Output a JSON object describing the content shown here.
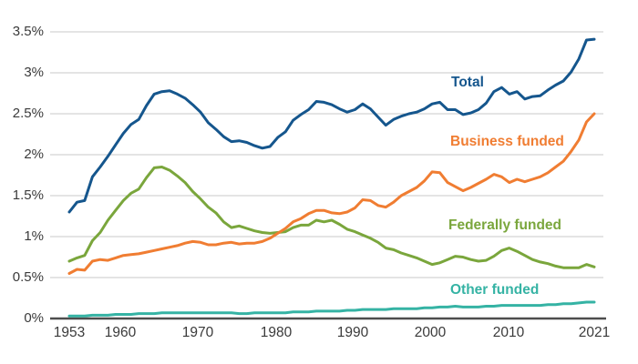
{
  "chart_data": {
    "type": "line",
    "x_range": [
      1953,
      2021
    ],
    "ylim": [
      0,
      3.5
    ],
    "y_unit": "percent",
    "grid": "horizontal",
    "legend_position": "inline-labels",
    "xticks": [
      "1953",
      "1960",
      "1970",
      "1980",
      "1990",
      "2000",
      "2010",
      "2021"
    ],
    "yticks": [
      "3.5%",
      "3%",
      "2.5%",
      "2%",
      "1.5%",
      "1%",
      "0.5%",
      "0%"
    ],
    "grid_values": [
      0.5,
      1,
      1.5,
      2,
      2.5,
      3,
      3.5
    ],
    "series": [
      {
        "name": "Total",
        "color": "#15568d",
        "values": [
          1.3,
          1.42,
          1.44,
          1.73,
          1.85,
          1.98,
          2.12,
          2.26,
          2.37,
          2.43,
          2.6,
          2.74,
          2.77,
          2.78,
          2.74,
          2.69,
          2.61,
          2.52,
          2.39,
          2.31,
          2.22,
          2.16,
          2.17,
          2.15,
          2.11,
          2.08,
          2.1,
          2.21,
          2.28,
          2.42,
          2.49,
          2.55,
          2.65,
          2.64,
          2.61,
          2.56,
          2.52,
          2.55,
          2.62,
          2.56,
          2.46,
          2.36,
          2.43,
          2.47,
          2.5,
          2.52,
          2.56,
          2.62,
          2.64,
          2.55,
          2.55,
          2.49,
          2.51,
          2.55,
          2.63,
          2.77,
          2.82,
          2.74,
          2.77,
          2.68,
          2.71,
          2.72,
          2.79,
          2.85,
          2.9,
          3.01,
          3.17,
          3.4,
          3.41
        ]
      },
      {
        "name": "Business funded",
        "color": "#f07d32",
        "values": [
          0.55,
          0.6,
          0.59,
          0.7,
          0.72,
          0.71,
          0.74,
          0.77,
          0.78,
          0.79,
          0.81,
          0.83,
          0.85,
          0.87,
          0.89,
          0.92,
          0.94,
          0.93,
          0.9,
          0.9,
          0.92,
          0.93,
          0.91,
          0.92,
          0.92,
          0.94,
          0.98,
          1.04,
          1.1,
          1.18,
          1.22,
          1.28,
          1.32,
          1.32,
          1.29,
          1.28,
          1.3,
          1.35,
          1.45,
          1.44,
          1.38,
          1.36,
          1.42,
          1.5,
          1.55,
          1.6,
          1.68,
          1.79,
          1.78,
          1.66,
          1.61,
          1.56,
          1.6,
          1.65,
          1.7,
          1.76,
          1.73,
          1.66,
          1.7,
          1.67,
          1.7,
          1.73,
          1.78,
          1.85,
          1.92,
          2.04,
          2.18,
          2.4,
          2.5
        ]
      },
      {
        "name": "Federally funded",
        "color": "#7aa63c",
        "values": [
          0.7,
          0.74,
          0.77,
          0.95,
          1.05,
          1.2,
          1.32,
          1.44,
          1.53,
          1.58,
          1.72,
          1.84,
          1.85,
          1.81,
          1.74,
          1.66,
          1.55,
          1.46,
          1.36,
          1.29,
          1.18,
          1.11,
          1.13,
          1.1,
          1.07,
          1.05,
          1.04,
          1.05,
          1.06,
          1.11,
          1.14,
          1.14,
          1.2,
          1.18,
          1.2,
          1.15,
          1.09,
          1.06,
          1.02,
          0.98,
          0.93,
          0.86,
          0.84,
          0.8,
          0.77,
          0.74,
          0.7,
          0.66,
          0.68,
          0.72,
          0.76,
          0.75,
          0.72,
          0.7,
          0.71,
          0.76,
          0.83,
          0.86,
          0.82,
          0.77,
          0.72,
          0.69,
          0.67,
          0.64,
          0.62,
          0.62,
          0.62,
          0.66,
          0.63
        ]
      },
      {
        "name": "Other funded",
        "color": "#35b3a4",
        "values": [
          0.03,
          0.03,
          0.03,
          0.04,
          0.04,
          0.04,
          0.05,
          0.05,
          0.05,
          0.06,
          0.06,
          0.06,
          0.07,
          0.07,
          0.07,
          0.07,
          0.07,
          0.07,
          0.07,
          0.07,
          0.07,
          0.07,
          0.06,
          0.06,
          0.07,
          0.07,
          0.07,
          0.07,
          0.07,
          0.08,
          0.08,
          0.08,
          0.09,
          0.09,
          0.09,
          0.09,
          0.1,
          0.1,
          0.11,
          0.11,
          0.11,
          0.11,
          0.12,
          0.12,
          0.12,
          0.12,
          0.13,
          0.13,
          0.14,
          0.14,
          0.15,
          0.14,
          0.14,
          0.14,
          0.15,
          0.15,
          0.16,
          0.16,
          0.16,
          0.16,
          0.16,
          0.16,
          0.17,
          0.17,
          0.18,
          0.18,
          0.19,
          0.2,
          0.2
        ]
      }
    ],
    "colors": {
      "grid": "#c9c9c9",
      "axis": "#4d4d4d",
      "tick_text": "#3a3a3a"
    }
  }
}
